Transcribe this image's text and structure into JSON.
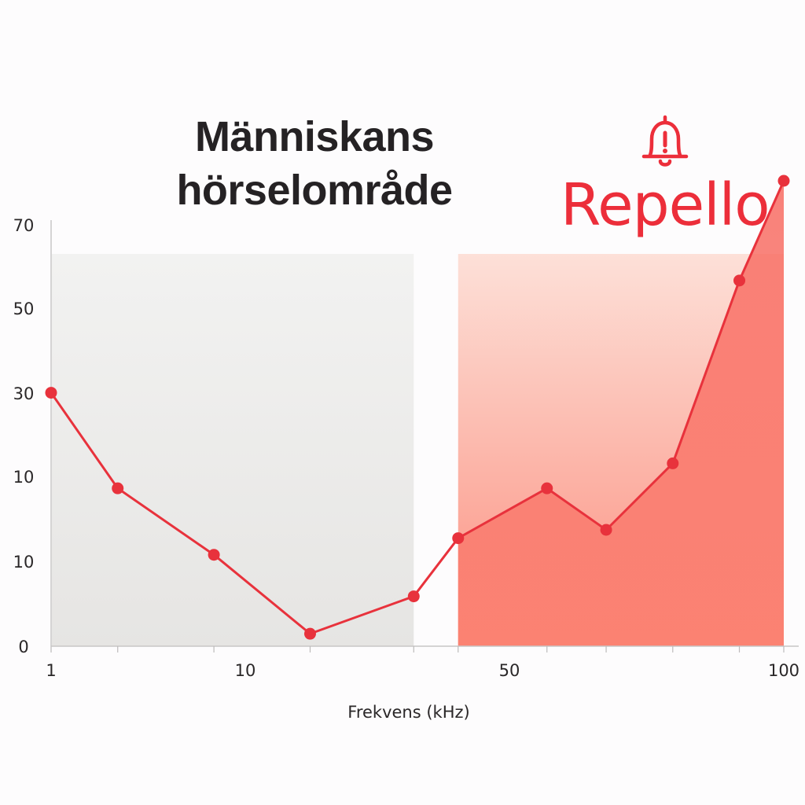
{
  "title_lines": [
    "Människans",
    "hörselområde"
  ],
  "brand": {
    "name": "Repello",
    "icon": "bell-alert-icon",
    "color": "#ec2e3a"
  },
  "colors": {
    "line": "#e8323c",
    "marker": "#e8323c",
    "human_band": "#ecebea",
    "repello_band": "#fb7a6e",
    "text": "#252224"
  },
  "chart_data": {
    "type": "line",
    "title": "Människans hörselområde",
    "xlabel": "Frekvens (kHz)",
    "ylabel": "",
    "x_tick_labels": [
      "1",
      "10",
      "50",
      "100"
    ],
    "y_tick_labels": [
      "0",
      "10",
      "10",
      "30",
      "50",
      "70"
    ],
    "grid": false,
    "series": [
      {
        "points": [
          {
            "x": 1,
            "y": 30.5
          },
          {
            "x": 10,
            "y": 19
          },
          {
            "x": 23,
            "y": 11
          },
          {
            "x": 36,
            "y": 1.5
          },
          {
            "x": 50,
            "y": 6
          },
          {
            "x": 56,
            "y": 13
          },
          {
            "x": 68,
            "y": 19
          },
          {
            "x": 76,
            "y": 14
          },
          {
            "x": 85,
            "y": 22
          },
          {
            "x": 94,
            "y": 44
          },
          {
            "x": 100,
            "y": 56
          }
        ]
      }
    ],
    "regions": [
      {
        "name": "human_hearing",
        "x_from": 1,
        "x_to": 50
      },
      {
        "name": "repello",
        "x_from": 56,
        "x_to": 100
      }
    ]
  }
}
